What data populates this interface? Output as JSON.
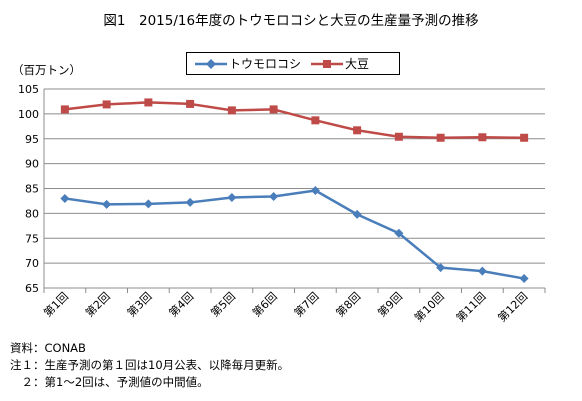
{
  "title": "図1　2015/16年度のトウモロコシと大豆の生産量予測の推移",
  "unit_label": "（百万トン）",
  "chart_data": {
    "type": "line",
    "categories": [
      "第1回",
      "第2回",
      "第3回",
      "第4回",
      "第5回",
      "第6回",
      "第7回",
      "第8回",
      "第9回",
      "第10回",
      "第11回",
      "第12回"
    ],
    "series": [
      {
        "name": "トウモロコシ",
        "color": "#4A7EBB",
        "marker": "diamond",
        "values": [
          83.0,
          81.8,
          81.9,
          82.2,
          83.2,
          83.4,
          84.6,
          79.8,
          76.0,
          69.1,
          68.4,
          66.9
        ]
      },
      {
        "name": "大豆",
        "color": "#BE4B48",
        "marker": "square",
        "values": [
          100.9,
          101.9,
          102.3,
          102.0,
          100.7,
          100.9,
          98.7,
          96.7,
          95.4,
          95.2,
          95.3,
          95.2
        ]
      }
    ],
    "ylim": [
      65,
      105
    ],
    "yticks": [
      "65",
      "70",
      "75",
      "80",
      "85",
      "90",
      "95",
      "100",
      "105"
    ],
    "grid": true,
    "legend_position": "top-center"
  },
  "notes": [
    "資料：CONAB",
    "注１：生産予測の第１回は10月公表、以降毎月更新。",
    "　２：第1～2回は、予測値の中間値。"
  ]
}
